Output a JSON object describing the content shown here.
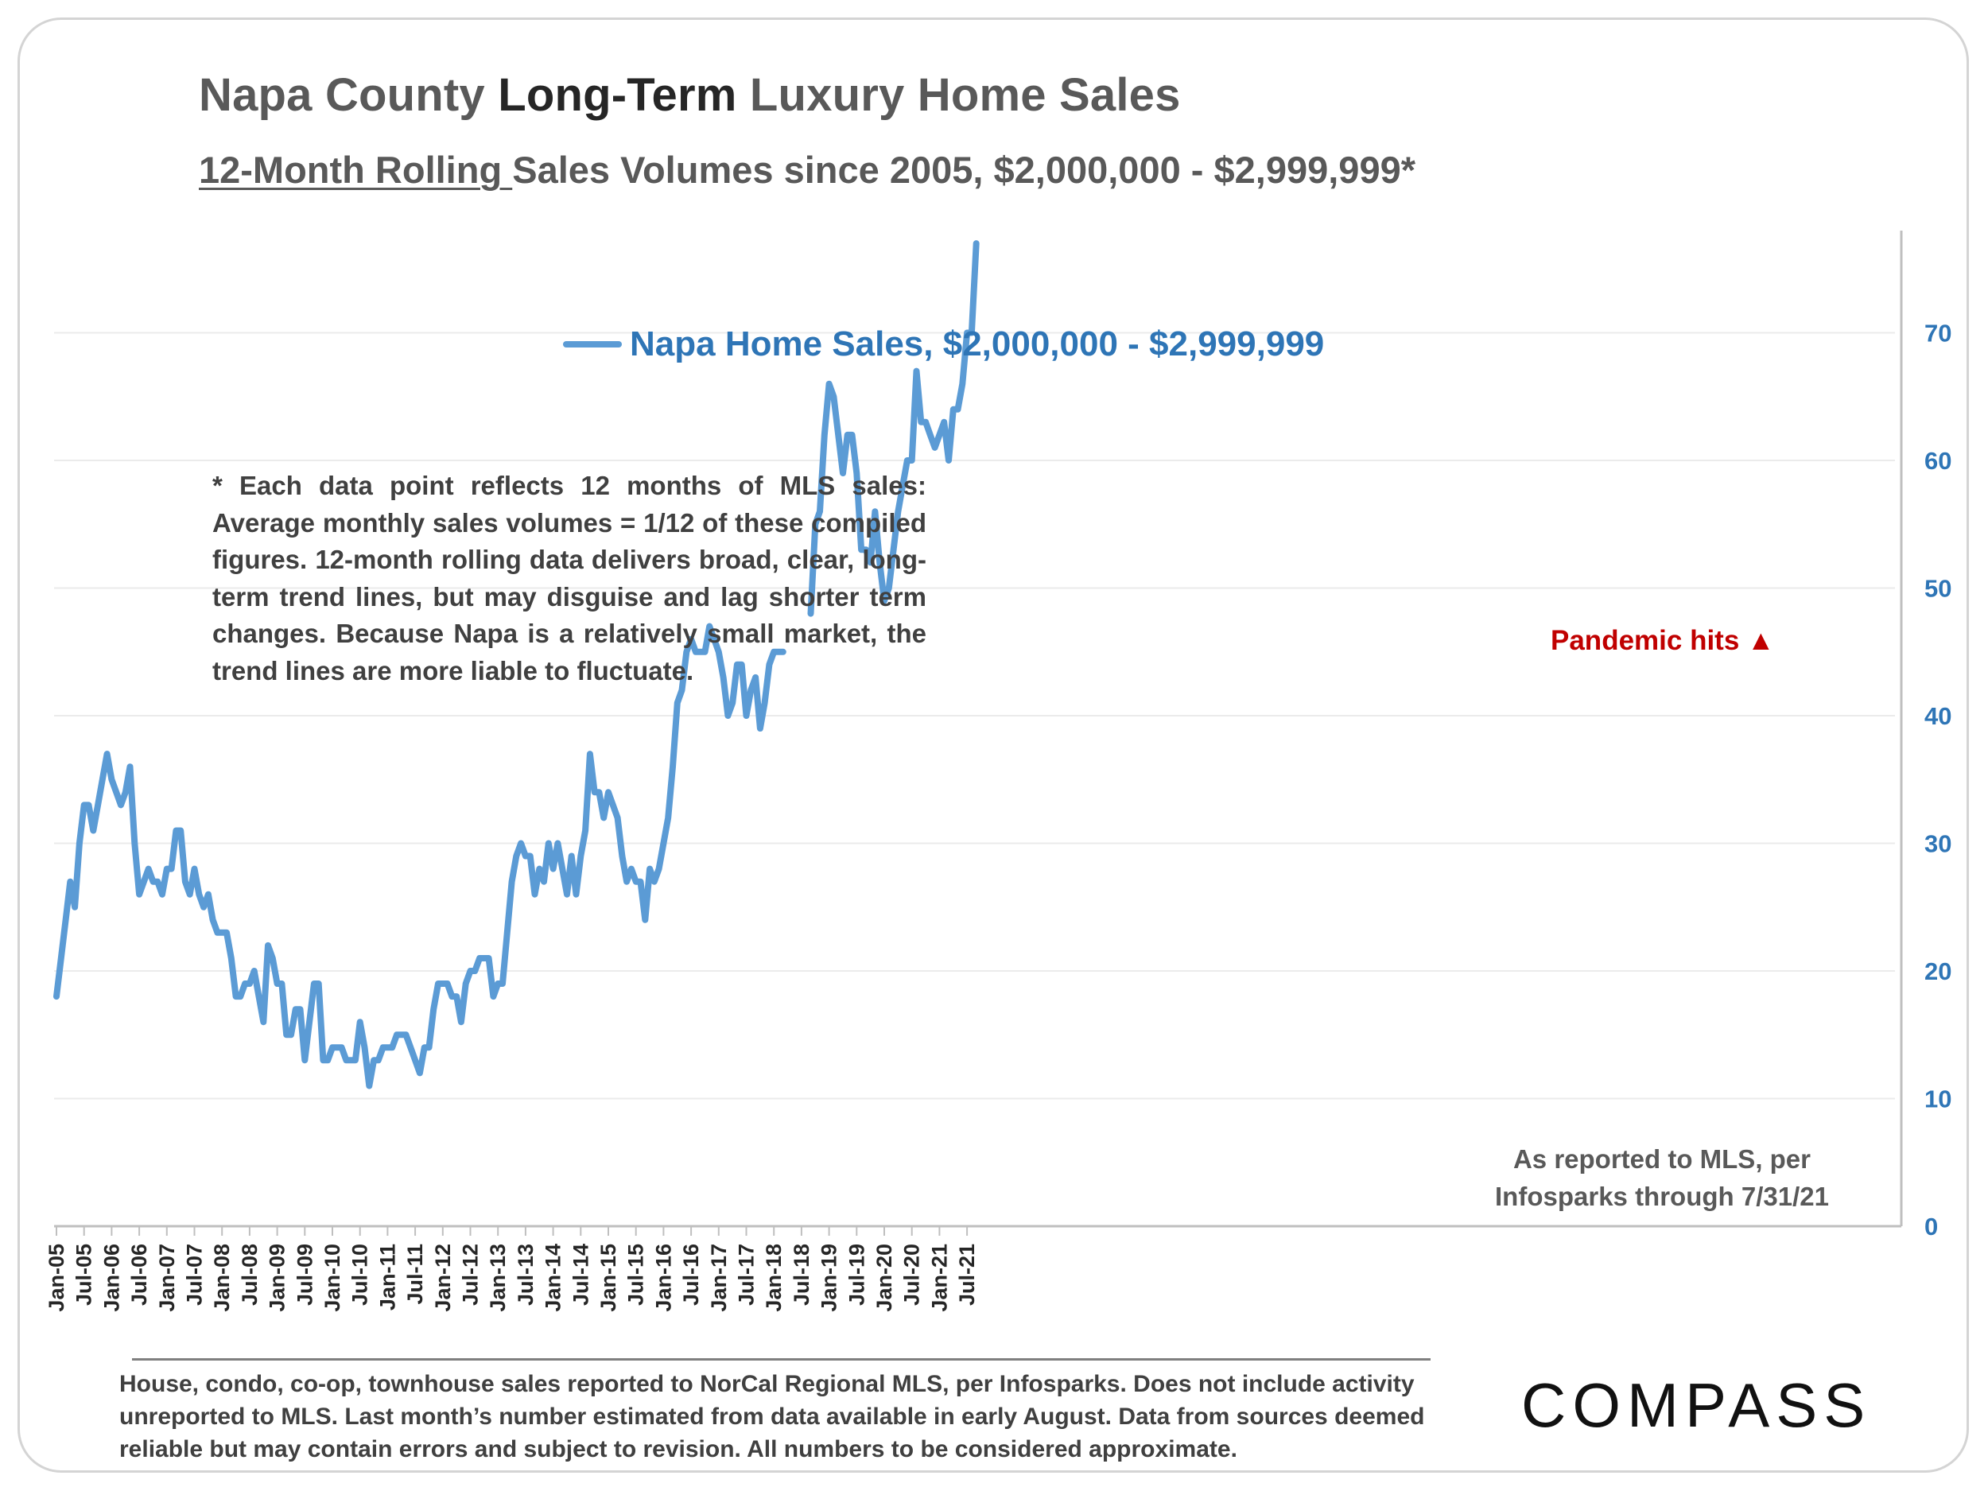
{
  "header": {
    "title_pre": "Napa County ",
    "title_bold": "Long-Term",
    "title_post": " Luxury Home Sales",
    "subtitle_underlined": "12-Month Rolling ",
    "subtitle_rest": "Sales Volumes since 2005, $2,000,000 - $2,999,999*"
  },
  "note": "* Each data point reflects 12 months of MLS sales: Average monthly sales volumes = 1/12 of these compiled figures. 12-month rolling data delivers broad, clear, long-term trend lines, but may disguise and lag shorter term changes. Because Napa is a relatively small market, the trend lines are more liable to fluctuate.",
  "annotation": {
    "pandemic": "Pandemic hits ▲",
    "color": "#c00000"
  },
  "source_note": "As reported to MLS, per Infosparks through 7/31/21",
  "footer": "House, condo, co-op, townhouse sales reported to NorCal Regional MLS, per Infosparks. Does not include activity unreported to MLS. Last month’s number estimated from data available in early August. Data from sources deemed reliable but may contain errors and subject to revision.  All numbers to be considered approximate.",
  "logo": "COMPASS",
  "colors": {
    "line": "#5b9bd5",
    "legend_text": "#2e75b6",
    "axis_labels": "#2e75b6",
    "gridline": "#ebebeb"
  },
  "chart_data": {
    "type": "line",
    "y_axis_position": "right",
    "ylim": [
      0,
      80
    ],
    "yticks": [
      0,
      10,
      20,
      30,
      40,
      50,
      60,
      70
    ],
    "grid": true,
    "legend_position": "top-center",
    "xtick_labels": [
      "Jan-05",
      "Jul-05",
      "Jan-06",
      "Jul-06",
      "Jan-07",
      "Jul-07",
      "Jan-08",
      "Jul-08",
      "Jan-09",
      "Jul-09",
      "Jan-10",
      "Jul-10",
      "Jan-11",
      "Jul-11",
      "Jan-12",
      "Jul-12",
      "Jan-13",
      "Jul-13",
      "Jan-14",
      "Jul-14",
      "Jan-15",
      "Jul-15",
      "Jan-16",
      "Jul-16",
      "Jan-17",
      "Jul-17",
      "Jan-18",
      "Jul-18",
      "Jan-19",
      "Jul-19",
      "Jan-20",
      "Jul-20",
      "Jan-21",
      "Jul-21"
    ],
    "x_start": "Jan-05",
    "series": [
      {
        "name": "Napa Home Sales, $2,000,000 - $2,999,999",
        "values": [
          18,
          21,
          24,
          27,
          25,
          30,
          33,
          33,
          31,
          33,
          35,
          37,
          35,
          34,
          33,
          34,
          36,
          30,
          26,
          27,
          28,
          27,
          27,
          26,
          28,
          28,
          31,
          31,
          27,
          26,
          28,
          26,
          25,
          26,
          24,
          23,
          23,
          23,
          21,
          18,
          18,
          19,
          19,
          20,
          18,
          16,
          22,
          21,
          19,
          19,
          15,
          15,
          17,
          17,
          13,
          16,
          19,
          19,
          13,
          13,
          14,
          14,
          14,
          13,
          13,
          13,
          16,
          14,
          11,
          13,
          13,
          14,
          14,
          14,
          15,
          15,
          15,
          14,
          13,
          12,
          14,
          14,
          17,
          19,
          19,
          19,
          18,
          18,
          16,
          19,
          20,
          20,
          21,
          21,
          21,
          18,
          19,
          19,
          23,
          27,
          29,
          30,
          29,
          29,
          26,
          28,
          27,
          30,
          28,
          30,
          28,
          26,
          29,
          26,
          29,
          31,
          37,
          34,
          34,
          32,
          34,
          33,
          32,
          29,
          27,
          28,
          27,
          27,
          24,
          28,
          27,
          28,
          30,
          32,
          36,
          41,
          42,
          45,
          46,
          45,
          45,
          45,
          47,
          46,
          45,
          43,
          40,
          41,
          44,
          44,
          40,
          42,
          43,
          39,
          41,
          44,
          45,
          45,
          45,
          null,
          null,
          null,
          null,
          null,
          48,
          55,
          56,
          62,
          66,
          65,
          62,
          59,
          62,
          62,
          59,
          53,
          53,
          52,
          56,
          52,
          49,
          50,
          53,
          56,
          58,
          60,
          60,
          67,
          63,
          63,
          62,
          61,
          62,
          63,
          60,
          64,
          64,
          66,
          70,
          70,
          77
        ]
      }
    ]
  }
}
